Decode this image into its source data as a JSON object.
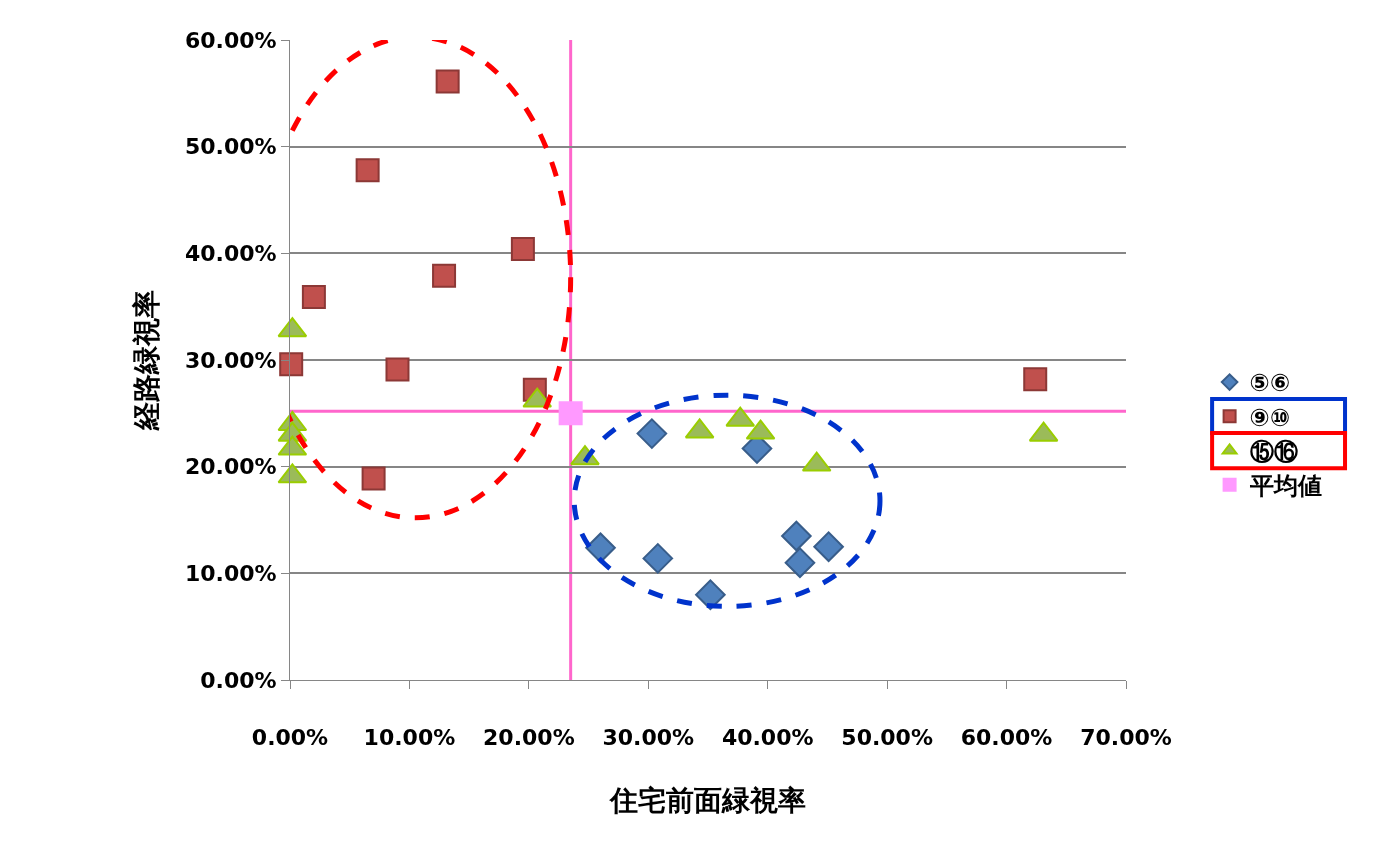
{
  "chart_data": {
    "type": "scatter",
    "xlabel": "住宅前面緑視率",
    "ylabel": "経路緑視率",
    "xlim": [
      0,
      70
    ],
    "ylim": [
      0,
      60
    ],
    "xticks": [
      {
        "value": 0,
        "label": "0.00%"
      },
      {
        "value": 10,
        "label": "10.00%"
      },
      {
        "value": 20,
        "label": "20.00%"
      },
      {
        "value": 30,
        "label": "30.00%"
      },
      {
        "value": 40,
        "label": "40.00%"
      },
      {
        "value": 50,
        "label": "50.00%"
      },
      {
        "value": 60,
        "label": "60.00%"
      },
      {
        "value": 70,
        "label": "70.00%"
      }
    ],
    "yticks": [
      {
        "value": 0,
        "label": "0.00%"
      },
      {
        "value": 10,
        "label": "10.00%"
      },
      {
        "value": 20,
        "label": "20.00%"
      },
      {
        "value": 30,
        "label": "30.00%"
      },
      {
        "value": 40,
        "label": "40.00%"
      },
      {
        "value": 50,
        "label": "50.00%"
      },
      {
        "value": 60,
        "label": "60.00%"
      }
    ],
    "grid": "y",
    "legend": "right",
    "series": [
      {
        "name": "⑤⑥",
        "color": "#4f81bd",
        "marker": "diamond",
        "x": [
          30.3,
          39.1,
          26.0,
          30.8,
          35.2,
          42.4,
          42.7,
          45.1
        ],
        "values": [
          23.1,
          21.7,
          12.4,
          11.4,
          8.0,
          13.5,
          11.0,
          12.5
        ]
      },
      {
        "name": "⑨⑩",
        "color": "#c0504d",
        "marker": "square",
        "x": [
          13.2,
          6.5,
          19.5,
          12.9,
          2.0,
          0.1,
          9.0,
          20.5,
          7.0,
          62.4
        ],
        "values": [
          56.1,
          47.8,
          40.4,
          37.9,
          35.9,
          29.6,
          29.1,
          27.2,
          18.9,
          28.2
        ]
      },
      {
        "name": "⑮⑯",
        "color": "#9bbb59",
        "marker": "triangle",
        "x": [
          0.2,
          0.2,
          0.2,
          0.2,
          0.2,
          20.7,
          24.7,
          34.3,
          37.7,
          39.4,
          44.1,
          63.1
        ],
        "values": [
          32.8,
          24.0,
          23.0,
          21.7,
          19.1,
          26.2,
          20.8,
          23.3,
          24.4,
          23.2,
          20.2,
          23.0
        ]
      },
      {
        "name": "平均値",
        "color": "#ff99ff",
        "marker": "square",
        "x": [
          23.5
        ],
        "values": [
          25.0
        ]
      }
    ],
    "ref_lines": [
      {
        "axis": "x",
        "value": 23.5,
        "color": "#ff66cc"
      },
      {
        "axis": "y",
        "value": 25.2,
        "color": "#ff66cc"
      }
    ]
  }
}
